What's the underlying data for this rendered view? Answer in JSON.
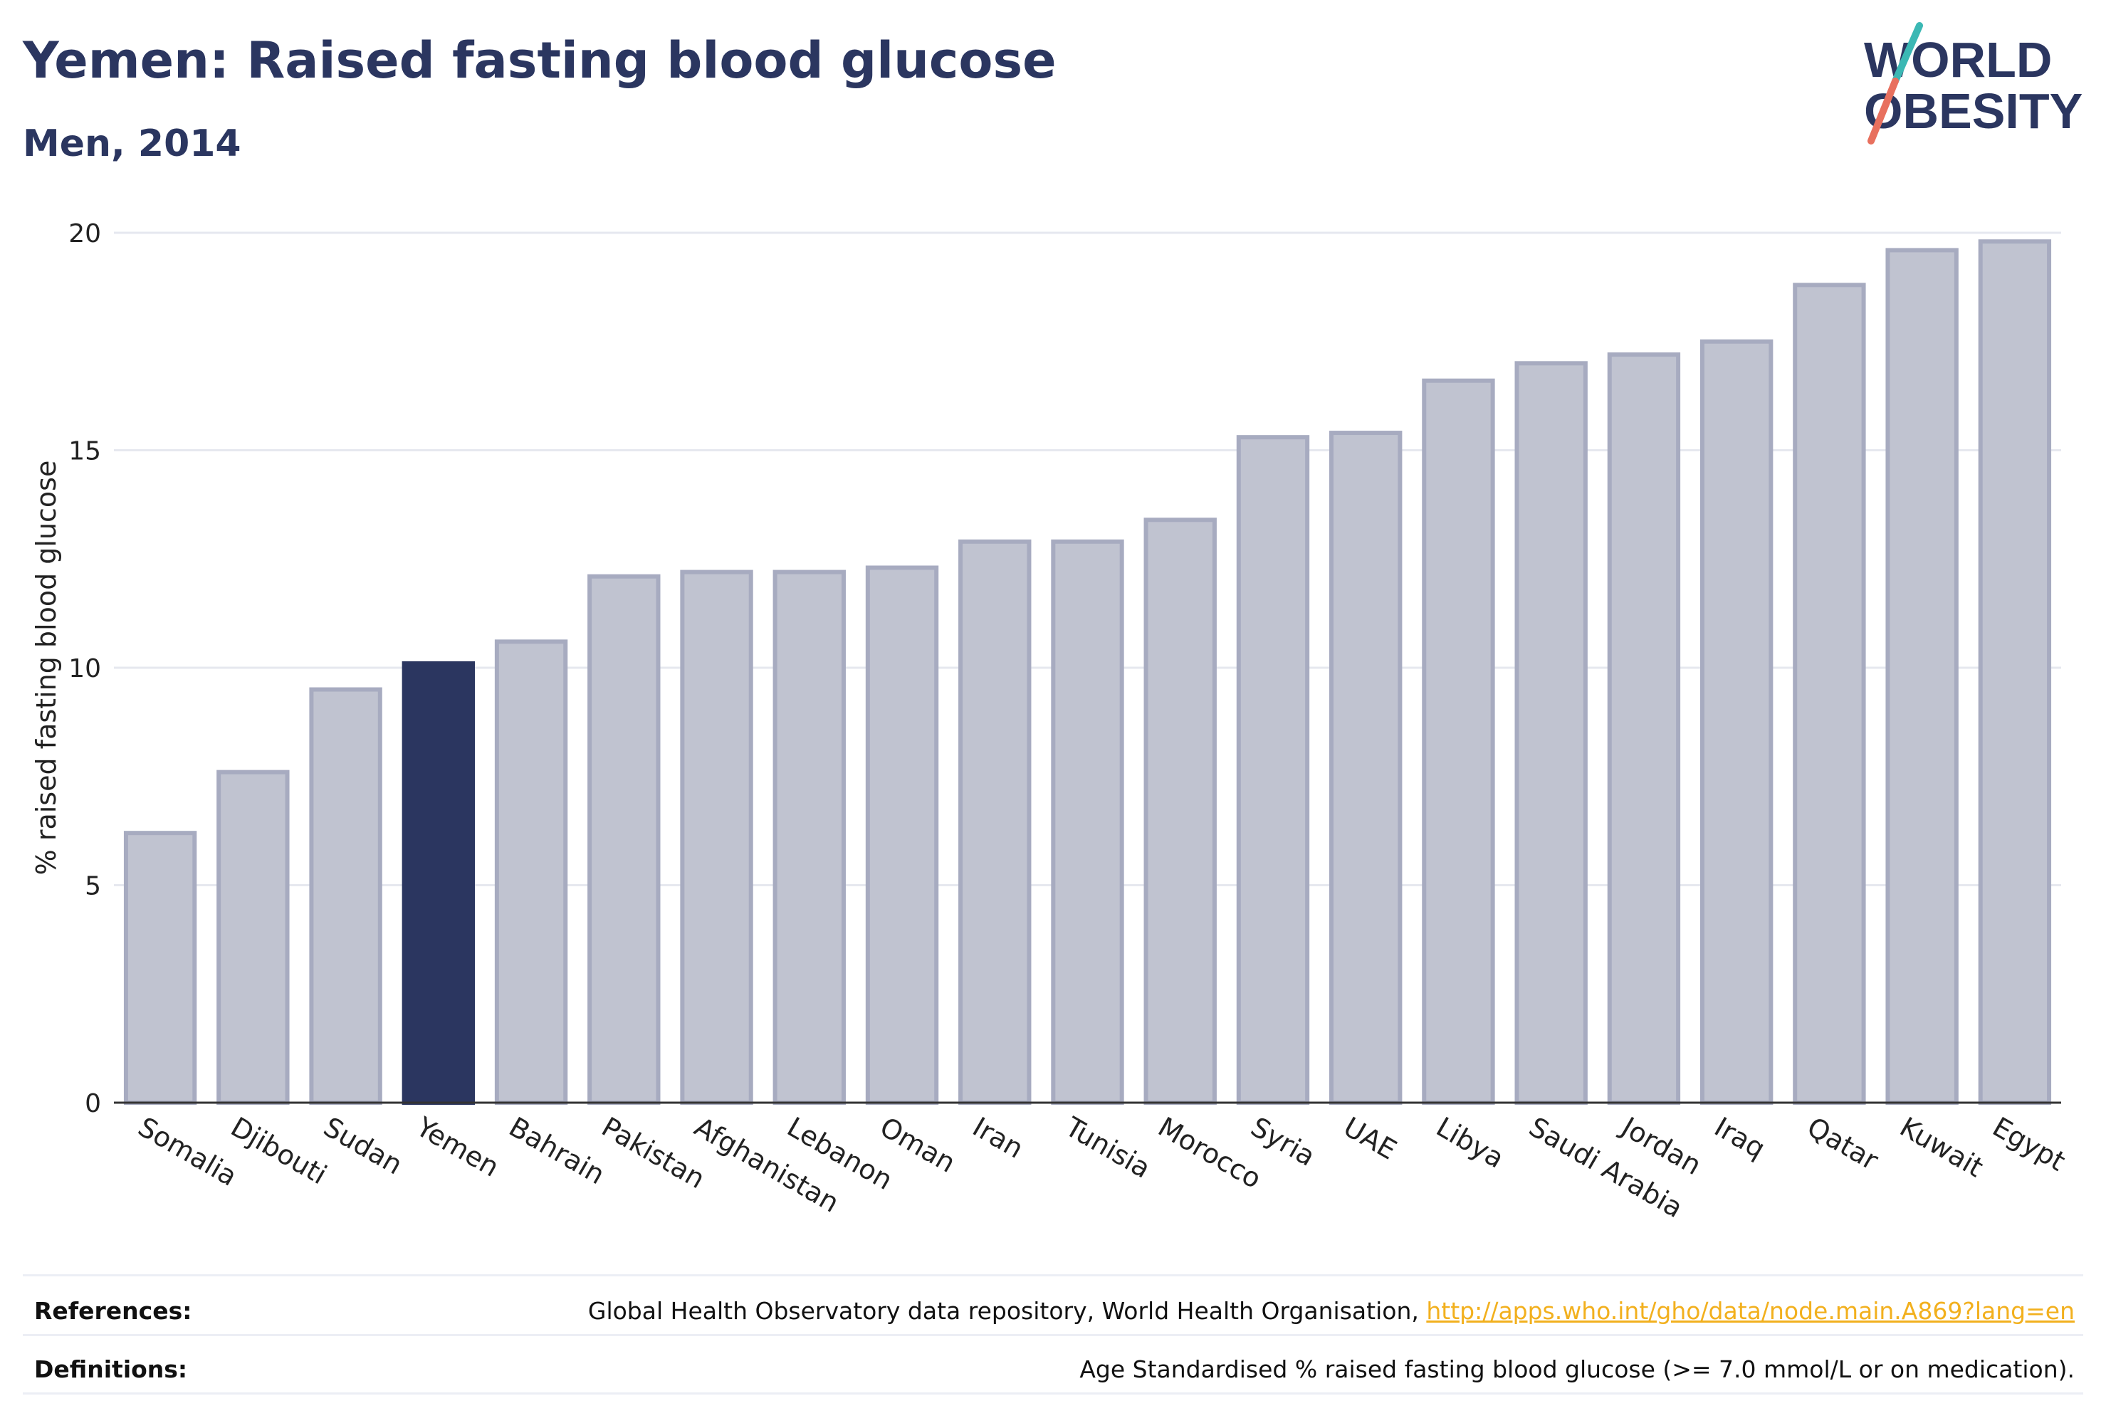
{
  "title": "Yemen: Raised fasting blood glucose",
  "subtitle": "Men, 2014",
  "logo": {
    "line1": "WORLD",
    "line2": "OBESITY"
  },
  "colors": {
    "highlight": "#2b3660",
    "bar_fill": "#c0c3d0",
    "bar_stroke": "#a7abc0",
    "accent_teal": "#3bb8b4",
    "accent_coral": "#e8705e"
  },
  "chart_data": {
    "type": "bar",
    "ylabel": "% raised fasting blood glucose",
    "xlabel": "",
    "ylim": [
      0,
      20
    ],
    "yticks": [
      0,
      5,
      10,
      15,
      20
    ],
    "grid": true,
    "highlight": "Yemen",
    "categories": [
      "Somalia",
      "Djibouti",
      "Sudan",
      "Yemen",
      "Bahrain",
      "Pakistan",
      "Afghanistan",
      "Lebanon",
      "Oman",
      "Iran",
      "Tunisia",
      "Morocco",
      "Syria",
      "UAE",
      "Libya",
      "Saudi Arabia",
      "Jordan",
      "Iraq",
      "Qatar",
      "Kuwait",
      "Egypt"
    ],
    "values": [
      6.2,
      7.6,
      9.5,
      10.1,
      10.6,
      12.1,
      12.2,
      12.2,
      12.3,
      12.9,
      12.9,
      13.4,
      15.3,
      15.4,
      16.6,
      17.0,
      17.2,
      17.5,
      18.8,
      19.6,
      19.8
    ]
  },
  "footer": {
    "references_label": "References:",
    "references_text": "Global Health Observatory data repository, World Health Organisation, ",
    "references_link": "http://apps.who.int/gho/data/node.main.A869?lang=en",
    "definitions_label": "Definitions:",
    "definitions_text": "Age Standardised % raised fasting blood glucose (>= 7.0 mmol/L or on medication)."
  }
}
